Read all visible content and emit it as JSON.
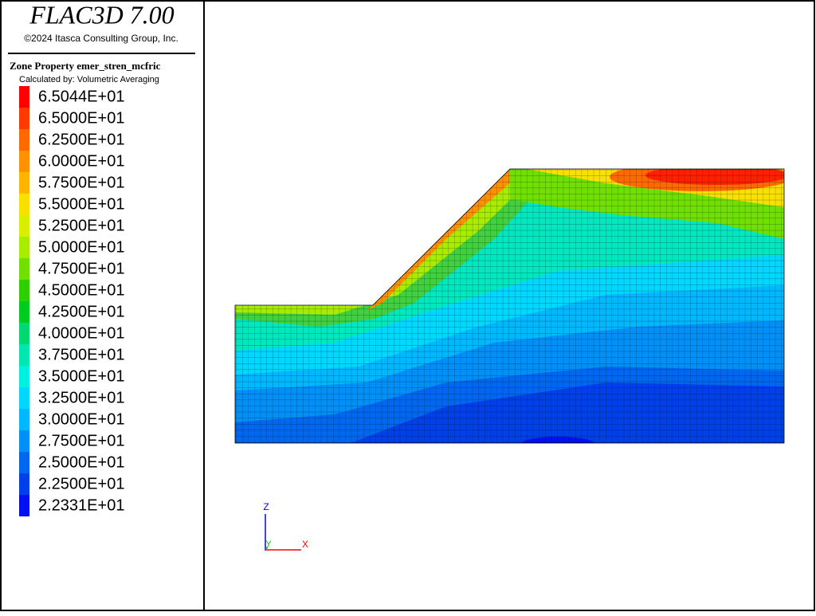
{
  "header": {
    "title": "FLAC3D 7.00",
    "copyright": "©2024 Itasca Consulting Group, Inc."
  },
  "legend": {
    "title": "Zone Property emer_stren_mcfric",
    "subtitle": "Calculated by: Volumetric Averaging",
    "entries": [
      {
        "label": "6.5044E+01",
        "color": "#ff0000"
      },
      {
        "label": "6.5000E+01",
        "color": "#ff3a00"
      },
      {
        "label": "6.2500E+01",
        "color": "#ff6a00"
      },
      {
        "label": "6.0000E+01",
        "color": "#ff9000"
      },
      {
        "label": "5.7500E+01",
        "color": "#ffb400"
      },
      {
        "label": "5.5000E+01",
        "color": "#f8e000"
      },
      {
        "label": "5.2500E+01",
        "color": "#d8f000"
      },
      {
        "label": "5.0000E+01",
        "color": "#a8ec00"
      },
      {
        "label": "4.7500E+01",
        "color": "#70e000"
      },
      {
        "label": "4.5000E+01",
        "color": "#30d000"
      },
      {
        "label": "4.2500E+01",
        "color": "#00cc20"
      },
      {
        "label": "4.0000E+01",
        "color": "#00d870"
      },
      {
        "label": "3.7500E+01",
        "color": "#00e8b0"
      },
      {
        "label": "3.5000E+01",
        "color": "#00f0e0"
      },
      {
        "label": "3.2500E+01",
        "color": "#00d8ff"
      },
      {
        "label": "3.0000E+01",
        "color": "#00b8ff"
      },
      {
        "label": "2.7500E+01",
        "color": "#0090f8"
      },
      {
        "label": "2.5000E+01",
        "color": "#0068f0"
      },
      {
        "label": "2.2500E+01",
        "color": "#0040e8"
      },
      {
        "label": "2.2331E+01",
        "color": "#0010f0"
      }
    ]
  },
  "axes": {
    "z": "Z",
    "y": "Y",
    "x": "X"
  }
}
